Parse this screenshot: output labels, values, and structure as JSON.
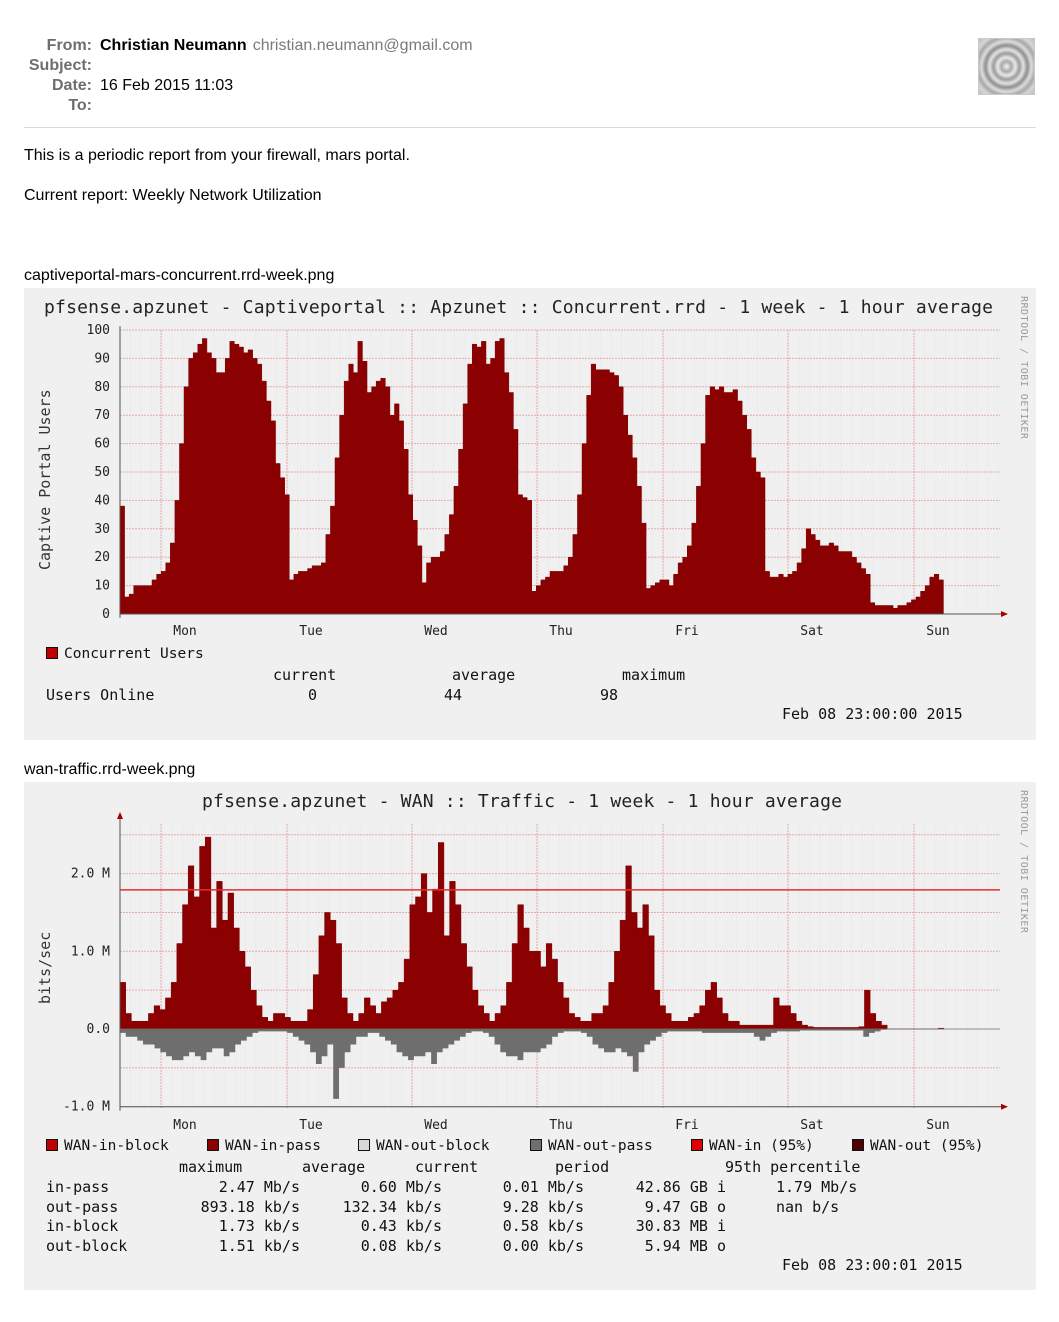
{
  "mail": {
    "from_label": "From:",
    "from_name": "Christian Neumann",
    "from_email": "christian.neumann@gmail.com",
    "subject_label": "Subject:",
    "subject": "",
    "date_label": "Date:",
    "date": "16 Feb 2015 11:03",
    "to_label": "To:",
    "to": "",
    "avatar_icon": "ripple-avatar-icon"
  },
  "body": {
    "intro": "This is a periodic report from your firewall, mars portal.",
    "report": "Current report: Weekly Network Utilization"
  },
  "colors": {
    "area_dark_red": "#8b0000",
    "area_grey": "#6e6e6e",
    "line_red": "#e03030",
    "panel_bg": "#f0f0f0",
    "grid": "#e8b8b8"
  },
  "graph1": {
    "filename": "captiveportal-mars-concurrent.rrd-week.png",
    "title": "pfsense.apzunet - Captiveportal :: Apzunet :: Concurrent.rrd - 1 week - 1 hour average",
    "watermark": "RRDTOOL / TOBI OETIKER",
    "legend": "Concurrent Users",
    "stats_header": {
      "current": "current",
      "average": "average",
      "maximum": "maximum"
    },
    "row_label": "Users Online",
    "current": "0",
    "average": "44",
    "maximum": "98",
    "timestamp": "Feb 08 23:00:00 2015"
  },
  "graph2": {
    "filename": "wan-traffic.rrd-week.png",
    "title": "pfsense.apzunet - WAN :: Traffic - 1 week - 1 hour average",
    "watermark": "RRDTOOL / TOBI OETIKER",
    "legend": [
      "WAN-in-block",
      "WAN-in-pass",
      "WAN-out-block",
      "WAN-out-pass",
      "WAN-in (95%)",
      "WAN-out (95%)"
    ],
    "legend_colors": [
      "#c00000",
      "#8b0000",
      "#d8d8d8",
      "#6e6e6e",
      "#e00000",
      "#500000"
    ],
    "headers": [
      "maximum",
      "average",
      "current",
      "period",
      "95th percentile"
    ],
    "rows": [
      {
        "label": "in-pass",
        "max": "2.47 Mb/s",
        "avg": "0.60 Mb/s",
        "cur": "0.01 Mb/s",
        "period": "42.86 GB i",
        "p95": "1.79 Mb/s"
      },
      {
        "label": "out-pass",
        "max": "893.18 kb/s",
        "avg": "132.34 kb/s",
        "cur": "9.28 kb/s",
        "period": "9.47 GB o",
        "p95": "nan   b/s"
      },
      {
        "label": "in-block",
        "max": "1.73 kb/s",
        "avg": "0.43 kb/s",
        "cur": "0.58 kb/s",
        "period": "30.83 MB i",
        "p95": ""
      },
      {
        "label": "out-block",
        "max": "1.51 kb/s",
        "avg": "0.08 kb/s",
        "cur": "0.00 kb/s",
        "period": "5.94 MB o",
        "p95": ""
      }
    ],
    "timestamp": "Feb 08 23:00:01 2015"
  },
  "chart_data": [
    {
      "type": "area",
      "title": "pfsense.apzunet - Captiveportal :: Apzunet :: Concurrent.rrd - 1 week - 1 hour average",
      "ylabel": "Captive Portal Users",
      "xlabel": "",
      "ylim": [
        0,
        100
      ],
      "yticks": [
        0,
        10,
        20,
        30,
        40,
        50,
        60,
        70,
        80,
        90,
        100
      ],
      "x_tick_labels": [
        "Mon",
        "Tue",
        "Wed",
        "Thu",
        "Fri",
        "Sat",
        "Sun"
      ],
      "grid": true,
      "series": [
        {
          "name": "Concurrent Users",
          "values": [
            38,
            6,
            7,
            10,
            10,
            10,
            10,
            12,
            14,
            15,
            18,
            25,
            40,
            60,
            80,
            90,
            92,
            95,
            97,
            92,
            90,
            85,
            85,
            90,
            96,
            95,
            94,
            92,
            93,
            90,
            88,
            82,
            75,
            68,
            53,
            48,
            42,
            12,
            14,
            15,
            15,
            16,
            17,
            17,
            18,
            28,
            38,
            55,
            70,
            82,
            88,
            85,
            96,
            89,
            78,
            80,
            82,
            83,
            80,
            70,
            74,
            68,
            58,
            42,
            33,
            24,
            11,
            18,
            20,
            20,
            22,
            28,
            35,
            45,
            58,
            74,
            88,
            95,
            94,
            96,
            88,
            90,
            96,
            97,
            85,
            78,
            65,
            42,
            41,
            40,
            8,
            10,
            12,
            13,
            15,
            15,
            15,
            17,
            20,
            28,
            42,
            60,
            77,
            88,
            86,
            86,
            86,
            85,
            84,
            80,
            70,
            63,
            55,
            45,
            32,
            9,
            10,
            11,
            12,
            12,
            10,
            14,
            18,
            20,
            24,
            32,
            45,
            60,
            77,
            80,
            79,
            80,
            78,
            78,
            79,
            75,
            70,
            65,
            55,
            50,
            48,
            15,
            13,
            13,
            14,
            13,
            14,
            15,
            18,
            23,
            30,
            28,
            26,
            24,
            24,
            25,
            24,
            22,
            22,
            22,
            20,
            18,
            16,
            14,
            4,
            3,
            3,
            3,
            3,
            2,
            3,
            3,
            4,
            5,
            6,
            8,
            10,
            13,
            14,
            12,
            0
          ]
        }
      ],
      "stats": {
        "current": 0,
        "average": 44,
        "maximum": 98
      }
    },
    {
      "type": "area",
      "title": "pfsense.apzunet - WAN :: Traffic - 1 week - 1 hour average",
      "ylabel": "bits/sec",
      "xlabel": "",
      "ylim": [
        -1.0,
        2.5
      ],
      "yticks": [
        "-1.0 M",
        "0.0",
        "1.0 M",
        "2.0 M"
      ],
      "x_tick_labels": [
        "Mon",
        "Tue",
        "Wed",
        "Thu",
        "Fri",
        "Sat",
        "Sun"
      ],
      "grid": true,
      "series": [
        {
          "name": "WAN-in-pass",
          "values": [
            0.6,
            0.2,
            0.1,
            0.1,
            0.1,
            0.2,
            0.3,
            0.25,
            0.4,
            0.6,
            1.1,
            1.6,
            2.1,
            1.7,
            2.35,
            2.47,
            1.3,
            1.9,
            1.4,
            1.75,
            1.3,
            1.0,
            0.8,
            0.5,
            0.3,
            0.15,
            0.1,
            0.2,
            0.2,
            0.15,
            0.1,
            0.1,
            0.1,
            0.25,
            0.7,
            1.2,
            1.5,
            1.4,
            1.1,
            0.4,
            0.2,
            0.1,
            0.2,
            0.4,
            0.3,
            0.2,
            0.35,
            0.4,
            0.5,
            0.6,
            0.9,
            1.6,
            1.7,
            2.0,
            1.5,
            1.8,
            2.4,
            1.2,
            1.9,
            1.6,
            1.1,
            0.8,
            0.5,
            0.3,
            0.2,
            0.1,
            0.2,
            0.3,
            0.6,
            1.1,
            1.6,
            1.3,
            1.0,
            1.0,
            0.8,
            1.1,
            0.9,
            0.6,
            0.4,
            0.2,
            0.15,
            0.1,
            0.1,
            0.2,
            0.2,
            0.3,
            0.6,
            1.0,
            1.4,
            2.1,
            1.5,
            1.3,
            1.6,
            1.2,
            0.5,
            0.3,
            0.2,
            0.1,
            0.1,
            0.1,
            0.15,
            0.2,
            0.3,
            0.5,
            0.6,
            0.4,
            0.2,
            0.1,
            0.1,
            0.05,
            0.05,
            0.05,
            0.05,
            0.05,
            0.05,
            0.4,
            0.3,
            0.3,
            0.2,
            0.1,
            0.05,
            0.03,
            0.02,
            0.02,
            0.02,
            0.02,
            0.02,
            0.02,
            0.02,
            0.02,
            0.03,
            0.5,
            0.2,
            0.1,
            0.05,
            0.0,
            0.0,
            0.0,
            0.0,
            0.0,
            0.0,
            0.0,
            0.0,
            0.0,
            0.01
          ]
        },
        {
          "name": "WAN-out-pass",
          "values": [
            -0.05,
            -0.1,
            -0.1,
            -0.15,
            -0.2,
            -0.2,
            -0.25,
            -0.3,
            -0.35,
            -0.4,
            -0.4,
            -0.35,
            -0.3,
            -0.35,
            -0.4,
            -0.3,
            -0.25,
            -0.25,
            -0.35,
            -0.3,
            -0.2,
            -0.15,
            -0.1,
            -0.05,
            -0.03,
            -0.03,
            -0.03,
            -0.03,
            -0.03,
            -0.05,
            -0.1,
            -0.15,
            -0.2,
            -0.3,
            -0.45,
            -0.35,
            -0.2,
            -0.9,
            -0.5,
            -0.3,
            -0.2,
            -0.1,
            -0.1,
            -0.05,
            -0.05,
            -0.1,
            -0.15,
            -0.2,
            -0.3,
            -0.35,
            -0.4,
            -0.35,
            -0.35,
            -0.3,
            -0.45,
            -0.3,
            -0.25,
            -0.2,
            -0.15,
            -0.1,
            -0.05,
            -0.03,
            -0.03,
            -0.05,
            -0.1,
            -0.2,
            -0.3,
            -0.35,
            -0.35,
            -0.4,
            -0.3,
            -0.3,
            -0.3,
            -0.25,
            -0.2,
            -0.1,
            -0.05,
            -0.03,
            -0.03,
            -0.03,
            -0.05,
            -0.1,
            -0.2,
            -0.25,
            -0.3,
            -0.3,
            -0.25,
            -0.3,
            -0.35,
            -0.55,
            -0.3,
            -0.2,
            -0.15,
            -0.1,
            -0.05,
            -0.03,
            -0.03,
            -0.03,
            -0.03,
            -0.03,
            -0.03,
            -0.05,
            -0.05,
            -0.05,
            -0.05,
            -0.05,
            -0.05,
            -0.05,
            -0.05,
            -0.05,
            -0.1,
            -0.15,
            -0.1,
            -0.05,
            -0.03,
            -0.03,
            -0.03,
            -0.03,
            -0.02,
            -0.02,
            -0.02,
            -0.02,
            -0.02,
            -0.02,
            -0.02,
            -0.02,
            -0.02,
            -0.02,
            -0.02,
            -0.1,
            -0.05,
            -0.03,
            -0.01,
            0,
            0,
            0,
            0,
            0,
            0,
            0,
            0,
            0,
            0
          ]
        }
      ],
      "reference_line": {
        "name": "WAN-in (95%)",
        "value": 1.79
      }
    }
  ]
}
